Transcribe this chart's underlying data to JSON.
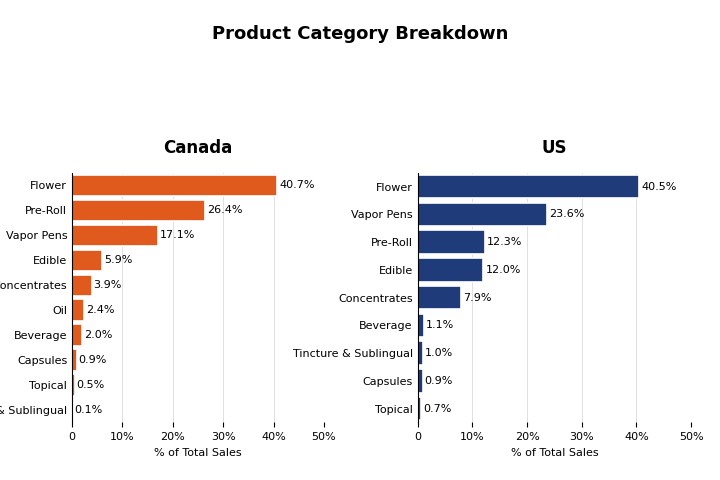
{
  "title": "Product Category Breakdown",
  "canada": {
    "subtitle": "Canada",
    "categories": [
      "Flower",
      "Pre-Roll",
      "Vapor Pens",
      "Edible",
      "Concentrates",
      "Oil",
      "Beverage",
      "Capsules",
      "Topical",
      "Tincture & Sublingual"
    ],
    "values": [
      40.7,
      26.4,
      17.1,
      5.9,
      3.9,
      2.4,
      2.0,
      0.9,
      0.5,
      0.1
    ],
    "color": "#E05A1E"
  },
  "us": {
    "subtitle": "US",
    "categories": [
      "Flower",
      "Vapor Pens",
      "Pre-Roll",
      "Edible",
      "Concentrates",
      "Beverage",
      "Tincture & Sublingual",
      "Capsules",
      "Topical"
    ],
    "values": [
      40.5,
      23.6,
      12.3,
      12.0,
      7.9,
      1.1,
      1.0,
      0.9,
      0.7
    ],
    "color": "#1F3B7A"
  },
  "xlabel": "% of Total Sales",
  "xlim": [
    0,
    50
  ],
  "xticks": [
    0,
    10,
    20,
    30,
    40,
    50
  ],
  "background_color": "#FFFFFF",
  "title_fontsize": 13,
  "subtitle_fontsize": 12,
  "label_fontsize": 8,
  "value_fontsize": 8,
  "xlabel_fontsize": 8
}
